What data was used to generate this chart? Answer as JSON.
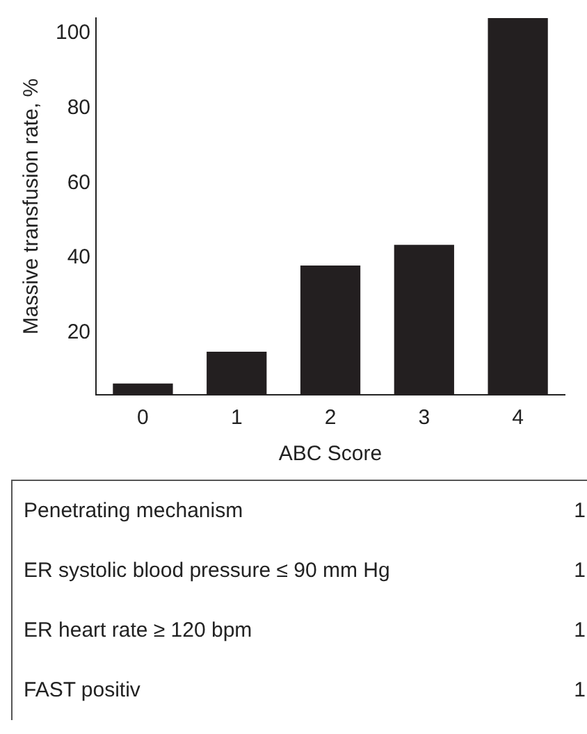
{
  "chart_data": [
    {
      "type": "bar",
      "xlabel": "ABC Score",
      "ylabel": "Massive transfusion rate, %",
      "categories": [
        "0",
        "1",
        "2",
        "3",
        "4"
      ],
      "values": [
        6.5,
        15,
        38,
        43.5,
        104
      ],
      "color": "#231f20",
      "ylim": [
        3.5,
        104
      ],
      "yticks": [
        20,
        40,
        60,
        80,
        100
      ],
      "grid": false
    },
    {
      "type": "other",
      "categories": [
        "Penetrating mechanism",
        "ER systolic blood pressure ≤ 90 mm Hg",
        "ER heart rate ≥ 120 bpm",
        "FAST positiv"
      ],
      "values": [
        1,
        1,
        1,
        1
      ],
      "data_labels": true
    }
  ]
}
